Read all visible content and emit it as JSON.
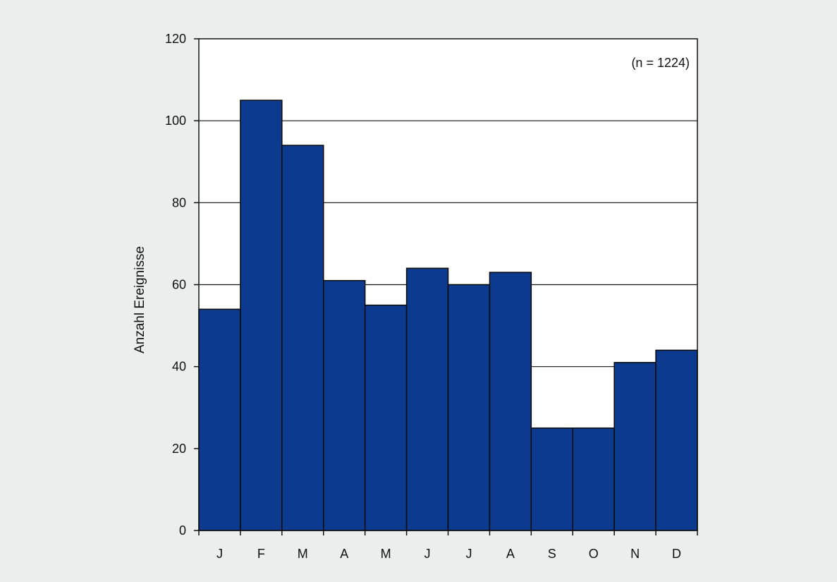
{
  "colors": {
    "bar_fill": "#0c3a8e",
    "bar_stroke": "#0a0a0a",
    "gridline": "#111111",
    "background": "#eceeee",
    "plot_background": "#ffffff"
  },
  "chart_data": {
    "type": "bar",
    "categories": [
      "J",
      "F",
      "M",
      "A",
      "M",
      "J",
      "J",
      "A",
      "S",
      "O",
      "N",
      "D"
    ],
    "values": [
      54,
      105,
      94,
      61,
      55,
      64,
      60,
      63,
      25,
      25,
      41,
      44
    ],
    "title": "",
    "xlabel": "",
    "ylabel": "Anzahl Ereignisse",
    "annotation": "(n = 1224)",
    "annotation_position": "top-right",
    "ylim": [
      0,
      120
    ],
    "yticks": [
      "0",
      "20",
      "40",
      "60",
      "80",
      "100",
      "120"
    ],
    "grid": "horizontal",
    "legend": "none",
    "bar_gap": 0
  }
}
